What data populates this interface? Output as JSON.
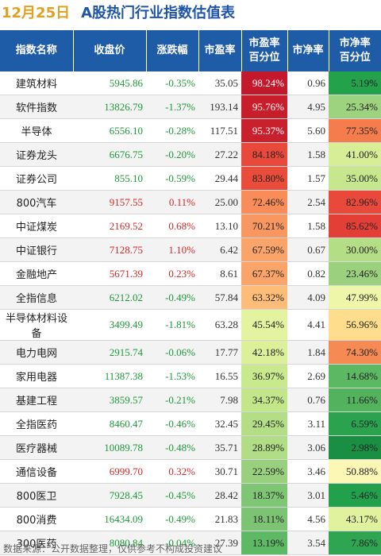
{
  "title": {
    "date": "12月25日",
    "text": "A股热门行业指数估值表"
  },
  "columns": [
    "指数名称",
    "收盘价",
    "涨跌幅",
    "市盈率",
    "市盈率\n百分位",
    "市净率",
    "市净率\n百分位"
  ],
  "rows": [
    {
      "name": "建筑材料",
      "close": "5945.86",
      "chg": "-0.35%",
      "pe": "35.05",
      "pe_pct": "98.24%",
      "pb": "0.96",
      "pb_pct": "5.19%",
      "pe_color": "#c4182c",
      "pb_color": "#23a14b",
      "pe_text": "#ffffff",
      "pb_text": "#222222",
      "dir": "down"
    },
    {
      "name": "软件指数",
      "close": "13826.79",
      "chg": "-1.37%",
      "pe": "193.14",
      "pe_pct": "95.76%",
      "pb": "4.95",
      "pb_pct": "25.34%",
      "pe_color": "#c81e2c",
      "pb_color": "#9dd27f",
      "pe_text": "#ffffff",
      "pb_text": "#222222",
      "dir": "down"
    },
    {
      "name": "半导体",
      "close": "6556.10",
      "chg": "-0.28%",
      "pe": "117.51",
      "pe_pct": "95.37%",
      "pb": "5.60",
      "pb_pct": "77.35%",
      "pe_color": "#c9202d",
      "pb_color": "#f57c4c",
      "pe_text": "#ffffff",
      "pb_text": "#222222",
      "dir": "down"
    },
    {
      "name": "证券龙头",
      "close": "6676.75",
      "chg": "-0.20%",
      "pe": "27.22",
      "pe_pct": "84.18%",
      "pb": "1.58",
      "pb_pct": "41.00%",
      "pe_color": "#e9493b",
      "pb_color": "#d7ee97",
      "pe_text": "#222222",
      "pb_text": "#222222",
      "dir": "down"
    },
    {
      "name": "证券公司",
      "close": "855.10",
      "chg": "-0.59%",
      "pe": "29.44",
      "pe_pct": "83.80%",
      "pb": "1.57",
      "pb_pct": "35.00%",
      "pe_color": "#ea4c3c",
      "pb_color": "#c6e78d",
      "pe_text": "#222222",
      "pb_text": "#222222",
      "dir": "down"
    },
    {
      "name": "800汽车",
      "close": "9157.55",
      "chg": "0.11%",
      "pe": "25.00",
      "pe_pct": "72.46%",
      "pb": "2.54",
      "pb_pct": "82.96%",
      "pe_color": "#f88d59",
      "pb_color": "#e9493b",
      "pe_text": "#222222",
      "pb_text": "#222222",
      "dir": "up"
    },
    {
      "name": "中证煤炭",
      "close": "2169.52",
      "chg": "0.68%",
      "pe": "13.10",
      "pe_pct": "70.21%",
      "pb": "1.58",
      "pb_pct": "85.62%",
      "pe_color": "#f99760",
      "pb_color": "#e43f36",
      "pe_text": "#222222",
      "pb_text": "#222222",
      "dir": "up"
    },
    {
      "name": "中证银行",
      "close": "7128.75",
      "chg": "1.10%",
      "pe": "6.42",
      "pe_pct": "67.59%",
      "pb": "0.67",
      "pb_pct": "30.00%",
      "pe_color": "#fba46a",
      "pb_color": "#b4de86",
      "pe_text": "#222222",
      "pb_text": "#222222",
      "dir": "up"
    },
    {
      "name": "金融地产",
      "close": "5671.39",
      "chg": "0.23%",
      "pe": "8.61",
      "pe_pct": "67.37%",
      "pb": "0.82",
      "pb_pct": "23.46%",
      "pe_color": "#fba46a",
      "pb_color": "#9bd17e",
      "pe_text": "#222222",
      "pb_text": "#222222",
      "dir": "up"
    },
    {
      "name": "全指信息",
      "close": "6212.02",
      "chg": "-0.49%",
      "pe": "57.84",
      "pe_pct": "63.32%",
      "pb": "4.09",
      "pb_pct": "47.99%",
      "pe_color": "#fdbc78",
      "pb_color": "#eef7a9",
      "pe_text": "#222222",
      "pb_text": "#222222",
      "dir": "down"
    },
    {
      "name": "半导体材料设备",
      "close": "3499.49",
      "chg": "-1.81%",
      "pe": "63.28",
      "pe_pct": "45.54%",
      "pb": "4.41",
      "pb_pct": "56.96%",
      "pe_color": "#e3f3a0",
      "pb_color": "#fedd8d",
      "pe_text": "#222222",
      "pb_text": "#222222",
      "dir": "down"
    },
    {
      "name": "电力电网",
      "close": "2915.74",
      "chg": "-0.06%",
      "pe": "17.77",
      "pe_pct": "42.18%",
      "pb": "1.84",
      "pb_pct": "74.30%",
      "pe_color": "#dcf09a",
      "pb_color": "#f68a55",
      "pe_text": "#222222",
      "pb_text": "#222222",
      "dir": "down"
    },
    {
      "name": "家用电器",
      "close": "11387.38",
      "chg": "-1.53%",
      "pe": "16.55",
      "pe_pct": "36.97%",
      "pb": "2.69",
      "pb_pct": "14.68%",
      "pe_color": "#c9e98f",
      "pb_color": "#5cb862",
      "pe_text": "#222222",
      "pb_text": "#222222",
      "dir": "down"
    },
    {
      "name": "基建工程",
      "close": "3859.57",
      "chg": "-0.21%",
      "pe": "7.98",
      "pe_pct": "34.37%",
      "pb": "0.76",
      "pb_pct": "11.66%",
      "pe_color": "#c3e68b",
      "pb_color": "#52b25d",
      "pe_text": "#222222",
      "pb_text": "#222222",
      "dir": "down"
    },
    {
      "name": "全指医药",
      "close": "8460.47",
      "chg": "-0.46%",
      "pe": "32.45",
      "pe_pct": "29.45%",
      "pb": "3.11",
      "pb_pct": "6.59%",
      "pe_color": "#b3de86",
      "pb_color": "#2aa24e",
      "pe_text": "#222222",
      "pb_text": "#222222",
      "dir": "down"
    },
    {
      "name": "医疗器械",
      "close": "10089.78",
      "chg": "-0.48%",
      "pe": "35.71",
      "pe_pct": "28.89%",
      "pb": "3.06",
      "pb_pct": "2.98%",
      "pe_color": "#b0dd85",
      "pb_color": "#1a8f43",
      "pe_text": "#222222",
      "pb_text": "#222222",
      "dir": "down"
    },
    {
      "name": "通信设备",
      "close": "6999.70",
      "chg": "0.32%",
      "pe": "30.71",
      "pe_pct": "22.59%",
      "pb": "3.46",
      "pb_pct": "50.88%",
      "pe_color": "#98d07d",
      "pb_color": "#fcf7b4",
      "pe_text": "#222222",
      "pb_text": "#222222",
      "dir": "up"
    },
    {
      "name": "800医卫",
      "close": "7928.45",
      "chg": "-0.45%",
      "pe": "28.42",
      "pe_pct": "18.37%",
      "pb": "3.01",
      "pb_pct": "5.46%",
      "pe_color": "#7ec574",
      "pb_color": "#22a04b",
      "pe_text": "#222222",
      "pb_text": "#222222",
      "dir": "down"
    },
    {
      "name": "800消费",
      "close": "16434.09",
      "chg": "-0.49%",
      "pe": "21.83",
      "pe_pct": "18.11%",
      "pb": "4.56",
      "pb_pct": "43.17%",
      "pe_color": "#7cc473",
      "pb_color": "#e1f29e",
      "pe_text": "#222222",
      "pb_text": "#222222",
      "dir": "down"
    },
    {
      "name": "300医药",
      "close": "8080.84",
      "chg": "-0.04%",
      "pe": "27.39",
      "pe_pct": "13.19%",
      "pb": "3.54",
      "pb_pct": "7.86%",
      "pe_color": "#5db963",
      "pb_color": "#2fa551",
      "pe_text": "#222222",
      "pb_text": "#222222",
      "dir": "down"
    }
  ],
  "footer": "数据来源：公开数据整理，仅供参考不构成投资建议"
}
